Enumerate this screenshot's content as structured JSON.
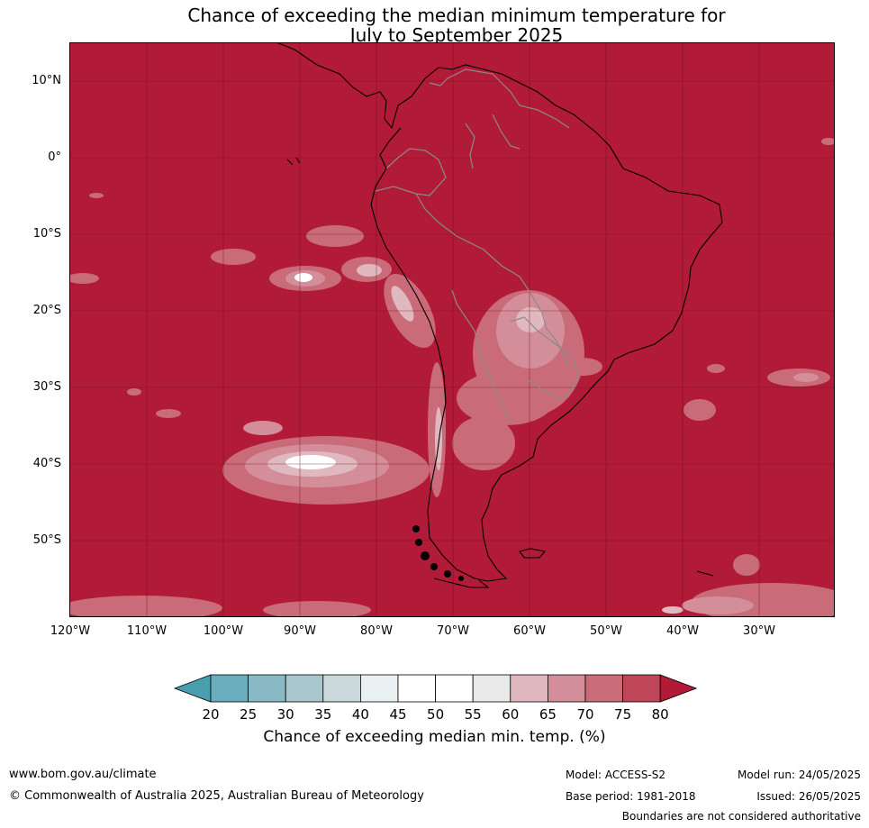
{
  "title": {
    "line1": "Chance of exceeding the median minimum temperature for",
    "line2": "July to September 2025"
  },
  "map": {
    "background_color": "#b11b37",
    "lat_labels": [
      "10°N",
      "0°",
      "10°S",
      "20°S",
      "30°S",
      "40°S",
      "50°S"
    ],
    "lon_labels": [
      "120°W",
      "110°W",
      "100°W",
      "90°W",
      "80°W",
      "70°W",
      "60°W",
      "50°W",
      "40°W",
      "30°W"
    ]
  },
  "colorbar": {
    "ticks": [
      "20",
      "25",
      "30",
      "35",
      "40",
      "45",
      "50",
      "55",
      "60",
      "65",
      "70",
      "75",
      "80"
    ],
    "colors": [
      "#4a9fae",
      "#6aaebe",
      "#8ab9c6",
      "#a9c8cd",
      "#cbd9dc",
      "#e9f0f2",
      "#ffffff",
      "#ffffff",
      "#e9e9ea",
      "#e0b8bf",
      "#d48e99",
      "#c96b78",
      "#bf4656",
      "#b11b37"
    ],
    "label": "Chance of exceeding median min. temp. (%)"
  },
  "footer": {
    "website": "www.bom.gov.au/climate",
    "copyright": "© Commonwealth of Australia 2025, Australian Bureau of Meteorology",
    "model": "Model: ACCESS-S2",
    "base_period": "Base period: 1981-2018",
    "model_run": "Model run: 24/05/2025",
    "issued": "Issued: 26/05/2025",
    "disclaimer": "Boundaries are not considered authoritative"
  }
}
